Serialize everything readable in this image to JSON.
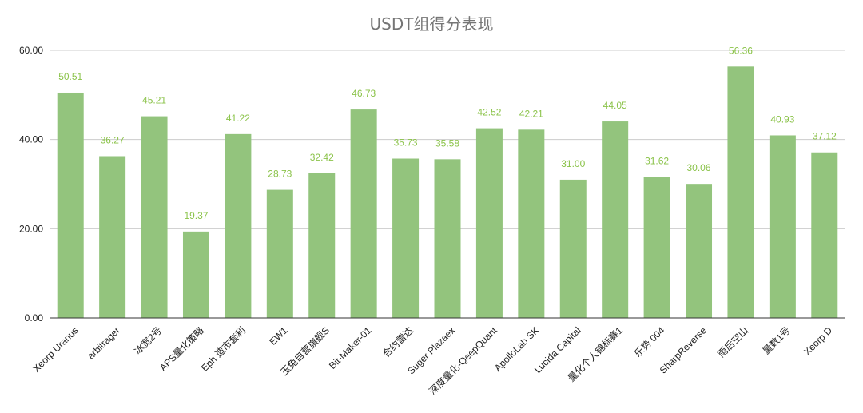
{
  "chart_data": {
    "type": "bar",
    "title": "USDT组得分表现",
    "xlabel": "",
    "ylabel": "",
    "ylim": [
      0,
      60
    ],
    "yticks": [
      "0.00",
      "20.00",
      "40.00",
      "60.00"
    ],
    "grid": true,
    "legend": "none",
    "categories": [
      "Xeorp Uranus",
      "arbitrager",
      "冰宽2号",
      "APS量化策略",
      "Eph 造市套利",
      "EW1",
      "玉兔自营旗舰S",
      "Bit-Maker-01",
      "合约雷达",
      "Suger Plazaex",
      "深度量化-QeepQuant",
      "ApolloLab SK",
      "Lucida Capital",
      "量化个人锦标赛1",
      "乐势 004",
      "SharpReverse",
      "雨后空山",
      "量数1号",
      "Xeorp D"
    ],
    "values": [
      50.51,
      36.27,
      45.21,
      19.37,
      41.22,
      28.73,
      32.42,
      46.73,
      35.73,
      35.58,
      42.52,
      42.21,
      31.0,
      44.05,
      31.62,
      30.06,
      56.36,
      40.93,
      37.12
    ],
    "value_labels": [
      "50.51",
      "36.27",
      "45.21",
      "19.37",
      "41.22",
      "28.73",
      "32.42",
      "46.73",
      "35.73",
      "35.58",
      "42.52",
      "42.21",
      "31.00",
      "44.05",
      "31.62",
      "30.06",
      "56.36",
      "40.93",
      "37.12"
    ]
  },
  "colors": {
    "bar": "#93c47d",
    "label": "#8bc34a",
    "grid": "#cccccc",
    "baseline": "#333333",
    "title": "#757575",
    "axis_text": "#222222"
  }
}
